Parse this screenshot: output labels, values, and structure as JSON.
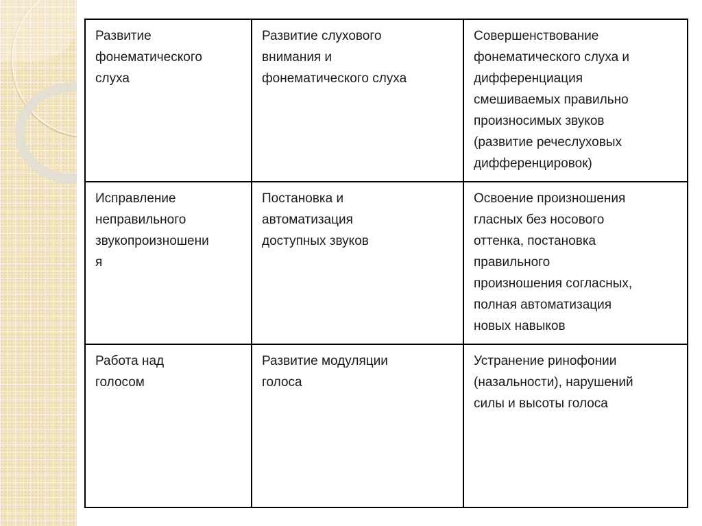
{
  "table": {
    "rows": [
      [
        "Развитие\nфонематического\nслуха",
        "Развитие слухового\nвнимания и\nфонематического слуха",
        "Совершенствование\nфонематического слуха и\nдифференциация\nсмешиваемых правильно\nпроизносимых звуков\n(развитие речеслуховых\nдифференцировок)"
      ],
      [
        "Исправление\nнеправильного\nзвукопроизношени\nя",
        "Постановка и\nавтоматизация\nдоступных звуков",
        "Освоение произношения\nгласных без носового\nоттенка, постановка\nправильного\nпроизношения согласных,\nполная автоматизация\nновых навыков"
      ],
      [
        "Работа над\nголосом",
        "Развитие модуляции\nголоса",
        "Устранение ринофонии\n(назальности), нарушений\nсилы и высоты голоса"
      ]
    ]
  }
}
